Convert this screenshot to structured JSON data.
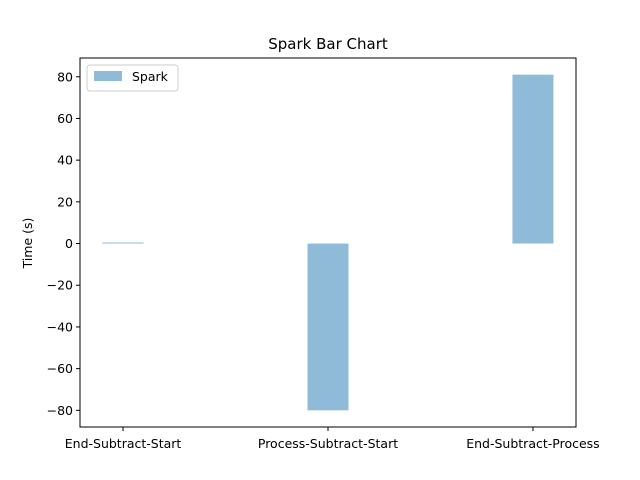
{
  "chart_data": {
    "type": "bar",
    "title": "Spark Bar Chart",
    "xlabel": "",
    "ylabel": "Time (s)",
    "categories": [
      "End-Subtract-Start",
      "Process-Subtract-Start",
      "End-Subtract-Process"
    ],
    "series": [
      {
        "name": "Spark",
        "values": [
          0.5,
          -80,
          81
        ],
        "color": "#8fbbd9"
      }
    ],
    "ylim": [
      -88,
      89
    ],
    "yticks": [
      -80,
      -60,
      -40,
      -20,
      0,
      20,
      40,
      60,
      80
    ],
    "ytick_labels": [
      "−80",
      "−60",
      "−40",
      "−20",
      "0",
      "20",
      "40",
      "60",
      "80"
    ],
    "grid": false,
    "legend_position": "upper left"
  }
}
